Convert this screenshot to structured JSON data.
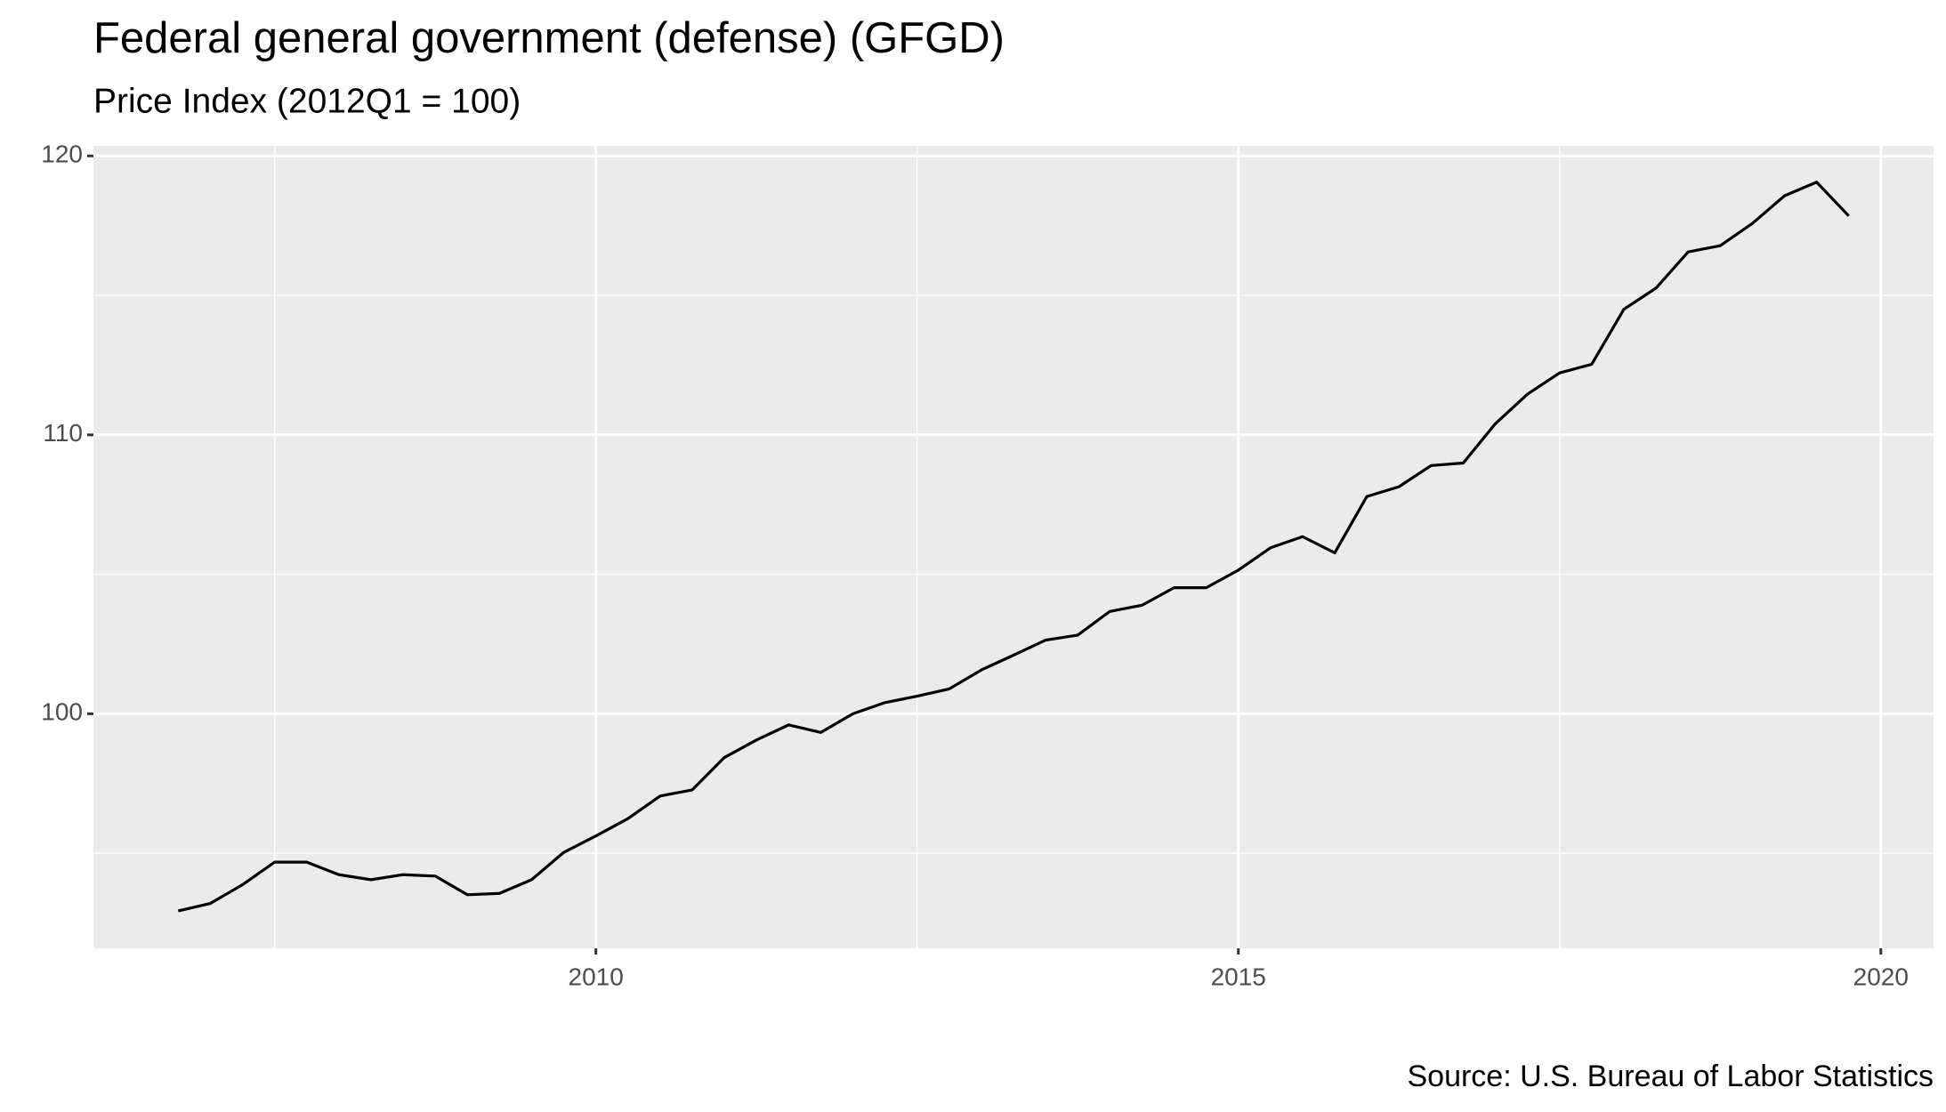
{
  "chart_data": {
    "type": "line",
    "title": "Federal general government (defense) (GFGD)",
    "subtitle": "Price Index (2012Q1 = 100)",
    "caption": "Source: U.S. Bureau of Labor Statistics",
    "x": [
      2006.75,
      2007,
      2007.25,
      2007.5,
      2007.75,
      2008,
      2008.25,
      2008.5,
      2008.75,
      2009,
      2009.25,
      2009.5,
      2009.75,
      2010,
      2010.25,
      2010.5,
      2010.75,
      2011,
      2011.25,
      2011.5,
      2011.75,
      2012,
      2012.25,
      2012.5,
      2012.75,
      2013,
      2013.25,
      2013.5,
      2013.75,
      2014,
      2014.25,
      2014.5,
      2014.75,
      2015,
      2015.25,
      2015.5,
      2015.75,
      2016,
      2016.25,
      2016.5,
      2016.75,
      2017,
      2017.25,
      2017.5,
      2017.75,
      2018,
      2018.25,
      2018.5,
      2018.75,
      2019,
      2019.25,
      2019.5,
      2019.75
    ],
    "series": [
      {
        "color": "#000000",
        "values": [
          92.93,
          93.2,
          93.87,
          94.68,
          94.68,
          94.23,
          94.05,
          94.23,
          94.18,
          93.51,
          93.56,
          94.05,
          95.03,
          95.62,
          96.24,
          97.05,
          97.27,
          98.43,
          99.06,
          99.6,
          99.33,
          100.0,
          100.4,
          100.63,
          100.89,
          101.57,
          102.1,
          102.64,
          102.82,
          103.67,
          103.89,
          104.52,
          104.52,
          105.15,
          105.95,
          106.35,
          105.77,
          107.79,
          108.14,
          108.9,
          108.99,
          110.4,
          111.46,
          112.22,
          112.53,
          114.5,
          115.26,
          116.56,
          116.78,
          117.58,
          118.57,
          119.06,
          117.85
        ]
      }
    ],
    "xlim": [
      2006.09,
      2020.41
    ],
    "xticks": [
      2010,
      2015,
      2020
    ],
    "ylim": [
      91.59,
      120.36
    ],
    "yticks": [
      100,
      110,
      120
    ],
    "grid": true
  }
}
